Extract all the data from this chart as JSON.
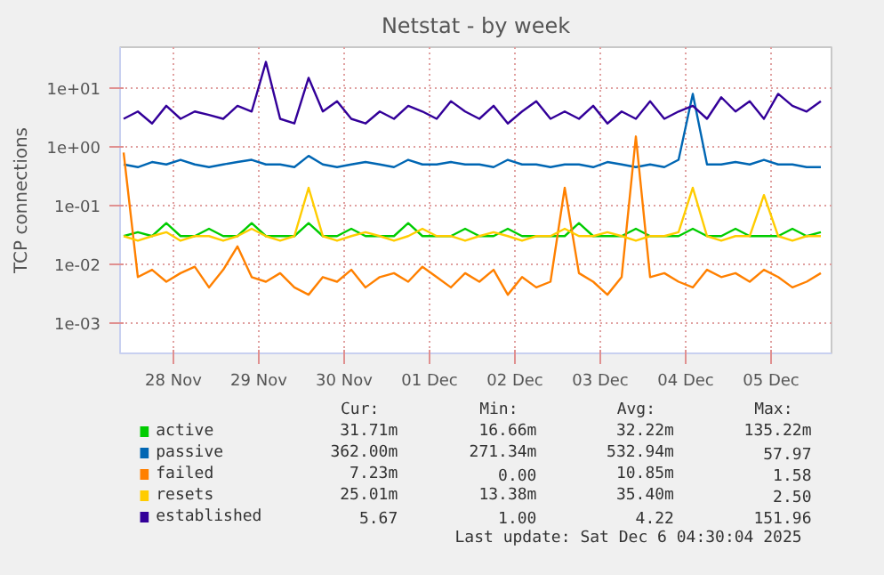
{
  "chart_data": {
    "type": "line",
    "title": "Netstat - by week",
    "ylabel": "TCP connections",
    "x": [
      "2025-11-27T22:00",
      "2025-11-28T02:00",
      "2025-11-28T06:00",
      "2025-11-28T10:00",
      "2025-11-28T14:00",
      "2025-11-28T18:00",
      "2025-11-28T22:00",
      "2025-11-29T02:00",
      "2025-11-29T06:00",
      "2025-11-29T10:00",
      "2025-11-29T14:00",
      "2025-11-29T18:00",
      "2025-11-29T22:00",
      "2025-11-30T02:00",
      "2025-11-30T06:00",
      "2025-11-30T10:00",
      "2025-11-30T14:00",
      "2025-11-30T18:00",
      "2025-11-30T22:00",
      "2025-12-01T02:00",
      "2025-12-01T06:00",
      "2025-12-01T10:00",
      "2025-12-01T14:00",
      "2025-12-01T18:00",
      "2025-12-01T22:00",
      "2025-12-02T02:00",
      "2025-12-02T06:00",
      "2025-12-02T10:00",
      "2025-12-02T14:00",
      "2025-12-02T18:00",
      "2025-12-02T22:00",
      "2025-12-03T02:00",
      "2025-12-03T06:00",
      "2025-12-03T10:00",
      "2025-12-03T14:00",
      "2025-12-03T18:00",
      "2025-12-03T22:00",
      "2025-12-04T02:00",
      "2025-12-04T06:00",
      "2025-12-04T10:00",
      "2025-12-04T14:00",
      "2025-12-04T18:00",
      "2025-12-04T22:00",
      "2025-12-05T02:00",
      "2025-12-05T06:00",
      "2025-12-05T10:00",
      "2025-12-05T14:00",
      "2025-12-05T18:00",
      "2025-12-05T22:00",
      "2025-12-06T02:00"
    ],
    "series": [
      {
        "name": "active",
        "color": "#00cc00",
        "values": [
          0.03,
          0.035,
          0.03,
          0.05,
          0.03,
          0.03,
          0.04,
          0.03,
          0.03,
          0.05,
          0.03,
          0.03,
          0.03,
          0.05,
          0.03,
          0.03,
          0.04,
          0.03,
          0.03,
          0.03,
          0.05,
          0.03,
          0.03,
          0.03,
          0.04,
          0.03,
          0.03,
          0.04,
          0.03,
          0.03,
          0.03,
          0.03,
          0.05,
          0.03,
          0.03,
          0.03,
          0.04,
          0.03,
          0.03,
          0.03,
          0.04,
          0.03,
          0.03,
          0.04,
          0.03,
          0.03,
          0.03,
          0.04,
          0.03,
          0.035
        ]
      },
      {
        "name": "passive",
        "color": "#0066b3",
        "values": [
          0.5,
          0.45,
          0.55,
          0.5,
          0.6,
          0.5,
          0.45,
          0.5,
          0.55,
          0.6,
          0.5,
          0.5,
          0.45,
          0.7,
          0.5,
          0.45,
          0.5,
          0.55,
          0.5,
          0.45,
          0.6,
          0.5,
          0.5,
          0.55,
          0.5,
          0.5,
          0.45,
          0.6,
          0.5,
          0.5,
          0.45,
          0.5,
          0.5,
          0.45,
          0.55,
          0.5,
          0.45,
          0.5,
          0.45,
          0.6,
          8,
          0.5,
          0.5,
          0.55,
          0.5,
          0.6,
          0.5,
          0.5,
          0.45,
          0.45
        ]
      },
      {
        "name": "failed",
        "color": "#ff8000",
        "values": [
          0.8,
          0.006,
          0.008,
          0.005,
          0.007,
          0.009,
          0.004,
          0.008,
          0.02,
          0.006,
          0.005,
          0.007,
          0.004,
          0.003,
          0.006,
          0.005,
          0.008,
          0.004,
          0.006,
          0.007,
          0.005,
          0.009,
          0.006,
          0.004,
          0.007,
          0.005,
          0.008,
          0.003,
          0.006,
          0.004,
          0.005,
          0.2,
          0.007,
          0.005,
          0.003,
          0.006,
          1.5,
          0.006,
          0.007,
          0.005,
          0.004,
          0.008,
          0.006,
          0.007,
          0.005,
          0.008,
          0.006,
          0.004,
          0.005,
          0.007
        ]
      },
      {
        "name": "resets",
        "color": "#ffcc00",
        "values": [
          0.03,
          0.025,
          0.03,
          0.035,
          0.025,
          0.03,
          0.03,
          0.025,
          0.03,
          0.04,
          0.03,
          0.025,
          0.03,
          0.2,
          0.03,
          0.025,
          0.03,
          0.035,
          0.03,
          0.025,
          0.03,
          0.04,
          0.03,
          0.03,
          0.025,
          0.03,
          0.035,
          0.03,
          0.025,
          0.03,
          0.03,
          0.04,
          0.03,
          0.03,
          0.035,
          0.03,
          0.025,
          0.03,
          0.03,
          0.035,
          0.2,
          0.03,
          0.025,
          0.03,
          0.03,
          0.15,
          0.03,
          0.025,
          0.03,
          0.03
        ]
      },
      {
        "name": "established",
        "color": "#330099",
        "values": [
          3,
          4,
          2.5,
          5,
          3,
          4,
          3.5,
          3,
          5,
          4,
          28,
          3,
          2.5,
          15,
          4,
          6,
          3,
          2.5,
          4,
          3,
          5,
          4,
          3,
          6,
          4,
          3,
          5,
          2.5,
          4,
          6,
          3,
          4,
          3,
          5,
          2.5,
          4,
          3,
          6,
          3,
          4,
          5,
          3,
          7,
          4,
          6,
          3,
          8,
          5,
          4,
          6
        ]
      }
    ],
    "log": "y",
    "ylim": [
      0.0003,
      50
    ],
    "yticks": [
      {
        "value": 0.001,
        "label": "1e-03"
      },
      {
        "value": 0.01,
        "label": "1e-02"
      },
      {
        "value": 0.1,
        "label": "1e-01"
      },
      {
        "value": 1,
        "label": "1e+00"
      },
      {
        "value": 10,
        "label": "1e+01"
      }
    ],
    "xlim": [
      "2025-11-27T21:00",
      "2025-12-06T05:00"
    ],
    "xticks": [
      {
        "value": "2025-11-28T12:00",
        "label": "28 Nov"
      },
      {
        "value": "2025-11-29T12:00",
        "label": "29 Nov"
      },
      {
        "value": "2025-11-30T12:00",
        "label": "30 Nov"
      },
      {
        "value": "2025-12-01T12:00",
        "label": "01 Dec"
      },
      {
        "value": "2025-12-02T12:00",
        "label": "02 Dec"
      },
      {
        "value": "2025-12-03T12:00",
        "label": "03 Dec"
      },
      {
        "value": "2025-12-04T12:00",
        "label": "04 Dec"
      },
      {
        "value": "2025-12-05T12:00",
        "label": "05 Dec"
      }
    ],
    "grid": true,
    "legend": "bottom",
    "annotations": [
      "Cur:",
      "Min:",
      "Avg:",
      "Max:",
      "31.71m",
      "16.66m",
      "32.22m",
      "135.22m",
      "362.00m",
      "271.34m",
      "532.94m",
      "57.97",
      "7.23m",
      "0.00",
      "10.85m",
      "1.58",
      "25.01m",
      "13.38m",
      "35.40m",
      "2.50",
      "5.67",
      "1.00",
      "4.22",
      "151.96",
      "Last update: Sat Dec  6 04:30:04 2025"
    ]
  }
}
